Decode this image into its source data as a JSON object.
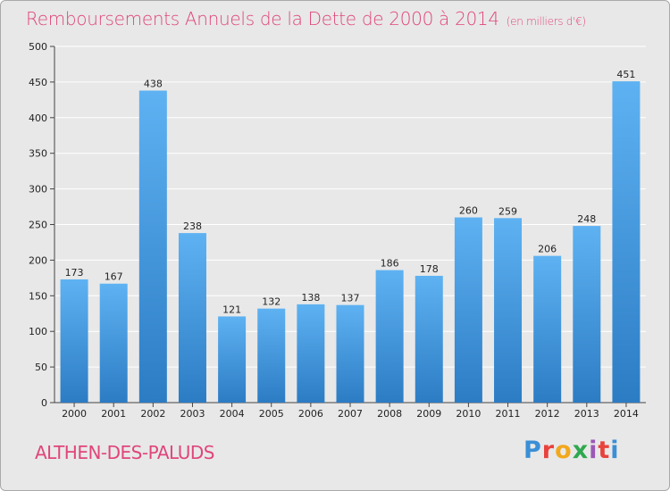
{
  "header": {
    "title": "Remboursements Annuels de la Dette de 2000 à 2014",
    "subtitle": "(en milliers d'€)"
  },
  "footer": {
    "commune": "ALTHEN-DES-PALUDS",
    "logo_letters": [
      "P",
      "r",
      "o",
      "x",
      "i",
      "t",
      "i"
    ],
    "logo_colors": [
      "#3a8fd6",
      "#e8423c",
      "#f2a81d",
      "#2fa84f",
      "#9b59b6",
      "#e8423c",
      "#3a8fd6"
    ]
  },
  "chart_data": {
    "type": "bar",
    "title": "Remboursements Annuels de la Dette de 2000 à 2014",
    "subtitle": "(en milliers d'€)",
    "xlabel": "",
    "ylabel": "",
    "categories": [
      "2000",
      "2001",
      "2002",
      "2003",
      "2004",
      "2005",
      "2006",
      "2007",
      "2008",
      "2009",
      "2010",
      "2011",
      "2012",
      "2013",
      "2014"
    ],
    "values": [
      173,
      167,
      438,
      238,
      121,
      132,
      138,
      137,
      186,
      178,
      260,
      259,
      206,
      248,
      451
    ],
    "ylim": [
      0,
      500
    ],
    "yticks": [
      0,
      50,
      100,
      150,
      200,
      250,
      300,
      350,
      400,
      450,
      500
    ],
    "grid": true,
    "legend": "none",
    "colors": {
      "bar_light": "#5aaef0",
      "bar_dark": "#2f7fc7",
      "grid": "#ffffff",
      "background": "#e8e8e8"
    }
  }
}
